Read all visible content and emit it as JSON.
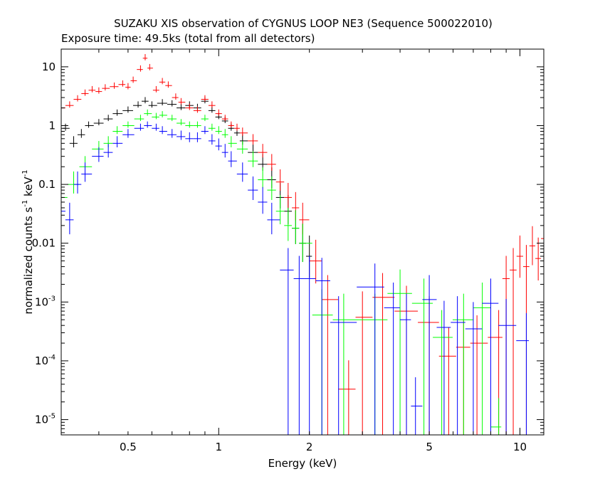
{
  "chart_data": {
    "type": "scatter",
    "title": "SUZAKU XIS observation of CYGNUS LOOP NE3 (Sequence 500022010)",
    "subtitle": "Exposure time: 49.5ks (total from all detectors)",
    "xlabel": "Energy (keV)",
    "ylabel_parts": {
      "pre": "normalized counts s",
      "exp1": "-1",
      "mid": " keV",
      "exp2": "-1"
    },
    "xscale": "log",
    "yscale": "log",
    "xlim": [
      0.3,
      12.0
    ],
    "ylim": [
      5.5e-06,
      20
    ],
    "x_tick_labels": [
      {
        "value": 0.5,
        "label": "0.5"
      },
      {
        "value": 1,
        "label": "1"
      },
      {
        "value": 2,
        "label": "2"
      },
      {
        "value": 5,
        "label": "5"
      },
      {
        "value": 10,
        "label": "10"
      }
    ],
    "y_tick_labels": [
      {
        "value": 10,
        "label": "10",
        "exp": ""
      },
      {
        "value": 1,
        "label": "1",
        "exp": ""
      },
      {
        "value": 0.1,
        "label": "0.1",
        "exp": ""
      },
      {
        "value": 0.01,
        "label": "0.01",
        "exp": ""
      },
      {
        "value": 0.001,
        "label": "10",
        "exp": "-3"
      },
      {
        "value": 0.0001,
        "label": "10",
        "exp": "-4"
      },
      {
        "value": 1e-05,
        "label": "10",
        "exp": "-5"
      }
    ],
    "grid": false,
    "legend": "none",
    "colors": {
      "black": "#000000",
      "red": "#ff0000",
      "green": "#00ff00",
      "blue": "#0000ff"
    },
    "series": [
      {
        "color": "#000000",
        "points": [
          [
            0.31,
            0.9
          ],
          [
            0.33,
            0.5
          ],
          [
            0.35,
            0.7
          ],
          [
            0.37,
            1.0
          ],
          [
            0.4,
            1.1
          ],
          [
            0.43,
            1.3
          ],
          [
            0.46,
            1.6
          ],
          [
            0.5,
            1.8
          ],
          [
            0.54,
            2.2
          ],
          [
            0.57,
            2.6
          ],
          [
            0.6,
            2.2
          ],
          [
            0.65,
            2.4
          ],
          [
            0.7,
            2.3
          ],
          [
            0.75,
            2.0
          ],
          [
            0.8,
            2.2
          ],
          [
            0.85,
            2.0
          ],
          [
            0.9,
            2.6
          ],
          [
            0.95,
            1.8
          ],
          [
            1.0,
            1.4
          ],
          [
            1.05,
            1.2
          ],
          [
            1.1,
            0.9
          ],
          [
            1.15,
            0.75
          ],
          [
            1.2,
            0.55
          ],
          [
            1.3,
            0.35
          ],
          [
            1.4,
            0.22
          ],
          [
            1.5,
            0.12
          ],
          [
            1.6,
            0.06
          ],
          [
            1.7,
            0.035
          ],
          [
            1.8,
            0.018
          ],
          [
            1.9,
            0.01
          ],
          [
            2.0,
            0.006
          ]
        ]
      },
      {
        "color": "#ff0000",
        "points": [
          [
            0.3,
            2.0
          ],
          [
            0.32,
            2.2
          ],
          [
            0.34,
            2.8
          ],
          [
            0.36,
            3.5
          ],
          [
            0.38,
            4.0
          ],
          [
            0.4,
            3.8
          ],
          [
            0.42,
            4.3
          ],
          [
            0.45,
            4.6
          ],
          [
            0.48,
            5.0
          ],
          [
            0.5,
            4.5
          ],
          [
            0.52,
            5.8
          ],
          [
            0.55,
            9.0
          ],
          [
            0.57,
            14.0
          ],
          [
            0.59,
            9.5
          ],
          [
            0.62,
            4.0
          ],
          [
            0.65,
            5.5
          ],
          [
            0.68,
            4.8
          ],
          [
            0.72,
            3.0
          ],
          [
            0.75,
            2.5
          ],
          [
            0.8,
            2.0
          ],
          [
            0.85,
            1.8
          ],
          [
            0.9,
            2.8
          ],
          [
            0.95,
            2.2
          ],
          [
            1.0,
            1.6
          ],
          [
            1.05,
            1.3
          ],
          [
            1.1,
            1.0
          ],
          [
            1.15,
            0.9
          ],
          [
            1.2,
            0.75
          ],
          [
            1.3,
            0.55
          ],
          [
            1.4,
            0.35
          ],
          [
            1.5,
            0.22
          ],
          [
            1.6,
            0.11
          ],
          [
            1.7,
            0.06
          ],
          [
            1.8,
            0.04
          ],
          [
            1.9,
            0.025
          ],
          [
            2.1,
            0.005
          ],
          [
            2.3,
            0.0011
          ],
          [
            2.7,
            3.3e-05
          ],
          [
            3.0,
            0.00055
          ],
          [
            3.5,
            0.0012
          ],
          [
            4.2,
            0.0007
          ],
          [
            5.0,
            0.00045
          ],
          [
            5.8,
            0.00012
          ],
          [
            6.5,
            0.00017
          ],
          [
            7.2,
            0.0002
          ],
          [
            8.5,
            0.00025
          ],
          [
            9.0,
            0.0025
          ],
          [
            9.5,
            0.0035
          ],
          [
            10.0,
            0.006
          ],
          [
            10.5,
            0.004
          ],
          [
            11.0,
            0.009
          ],
          [
            11.5,
            0.0055
          ],
          [
            12.0,
            0.012
          ]
        ]
      },
      {
        "color": "#00ff00",
        "points": [
          [
            0.3,
            0.06
          ],
          [
            0.33,
            0.1
          ],
          [
            0.36,
            0.2
          ],
          [
            0.4,
            0.4
          ],
          [
            0.43,
            0.5
          ],
          [
            0.46,
            0.8
          ],
          [
            0.5,
            1.0
          ],
          [
            0.55,
            1.3
          ],
          [
            0.58,
            1.6
          ],
          [
            0.62,
            1.4
          ],
          [
            0.65,
            1.5
          ],
          [
            0.7,
            1.3
          ],
          [
            0.75,
            1.1
          ],
          [
            0.8,
            1.0
          ],
          [
            0.85,
            1.0
          ],
          [
            0.9,
            1.3
          ],
          [
            0.95,
            0.9
          ],
          [
            1.0,
            0.8
          ],
          [
            1.05,
            0.7
          ],
          [
            1.1,
            0.5
          ],
          [
            1.2,
            0.4
          ],
          [
            1.3,
            0.25
          ],
          [
            1.4,
            0.12
          ],
          [
            1.5,
            0.08
          ],
          [
            1.6,
            0.035
          ],
          [
            1.7,
            0.02
          ],
          [
            1.8,
            0.018
          ],
          [
            1.9,
            0.01
          ],
          [
            2.2,
            0.0006
          ],
          [
            2.6,
            0.0005
          ],
          [
            3.3,
            0.0005
          ],
          [
            4.0,
            0.0014
          ],
          [
            4.8,
            0.00095
          ],
          [
            5.5,
            0.00025
          ],
          [
            6.5,
            0.0005
          ],
          [
            7.5,
            0.0008
          ],
          [
            8.5,
            7.5e-06
          ]
        ]
      },
      {
        "color": "#0000ff",
        "points": [
          [
            0.3,
            0.035
          ],
          [
            0.32,
            0.025
          ],
          [
            0.34,
            0.1
          ],
          [
            0.36,
            0.15
          ],
          [
            0.4,
            0.3
          ],
          [
            0.43,
            0.35
          ],
          [
            0.46,
            0.5
          ],
          [
            0.5,
            0.7
          ],
          [
            0.55,
            0.9
          ],
          [
            0.58,
            1.0
          ],
          [
            0.62,
            0.9
          ],
          [
            0.65,
            0.8
          ],
          [
            0.7,
            0.7
          ],
          [
            0.75,
            0.65
          ],
          [
            0.8,
            0.6
          ],
          [
            0.85,
            0.6
          ],
          [
            0.9,
            0.8
          ],
          [
            0.95,
            0.55
          ],
          [
            1.0,
            0.45
          ],
          [
            1.05,
            0.35
          ],
          [
            1.1,
            0.25
          ],
          [
            1.2,
            0.15
          ],
          [
            1.3,
            0.08
          ],
          [
            1.4,
            0.05
          ],
          [
            1.5,
            0.025
          ],
          [
            1.7,
            0.0035
          ],
          [
            1.85,
            0.0025
          ],
          [
            2.0,
            0.0025
          ],
          [
            2.2,
            0.0023
          ],
          [
            2.5,
            0.00045
          ],
          [
            3.3,
            0.0018
          ],
          [
            3.8,
            0.0008
          ],
          [
            4.2,
            0.0005
          ],
          [
            4.5,
            1.7e-05
          ],
          [
            5.0,
            0.0011
          ],
          [
            5.6,
            0.00037
          ],
          [
            6.2,
            0.00045
          ],
          [
            7.0,
            0.00035
          ],
          [
            8.0,
            0.00095
          ],
          [
            9.0,
            0.0004
          ],
          [
            10.5,
            0.00022
          ]
        ]
      }
    ]
  }
}
